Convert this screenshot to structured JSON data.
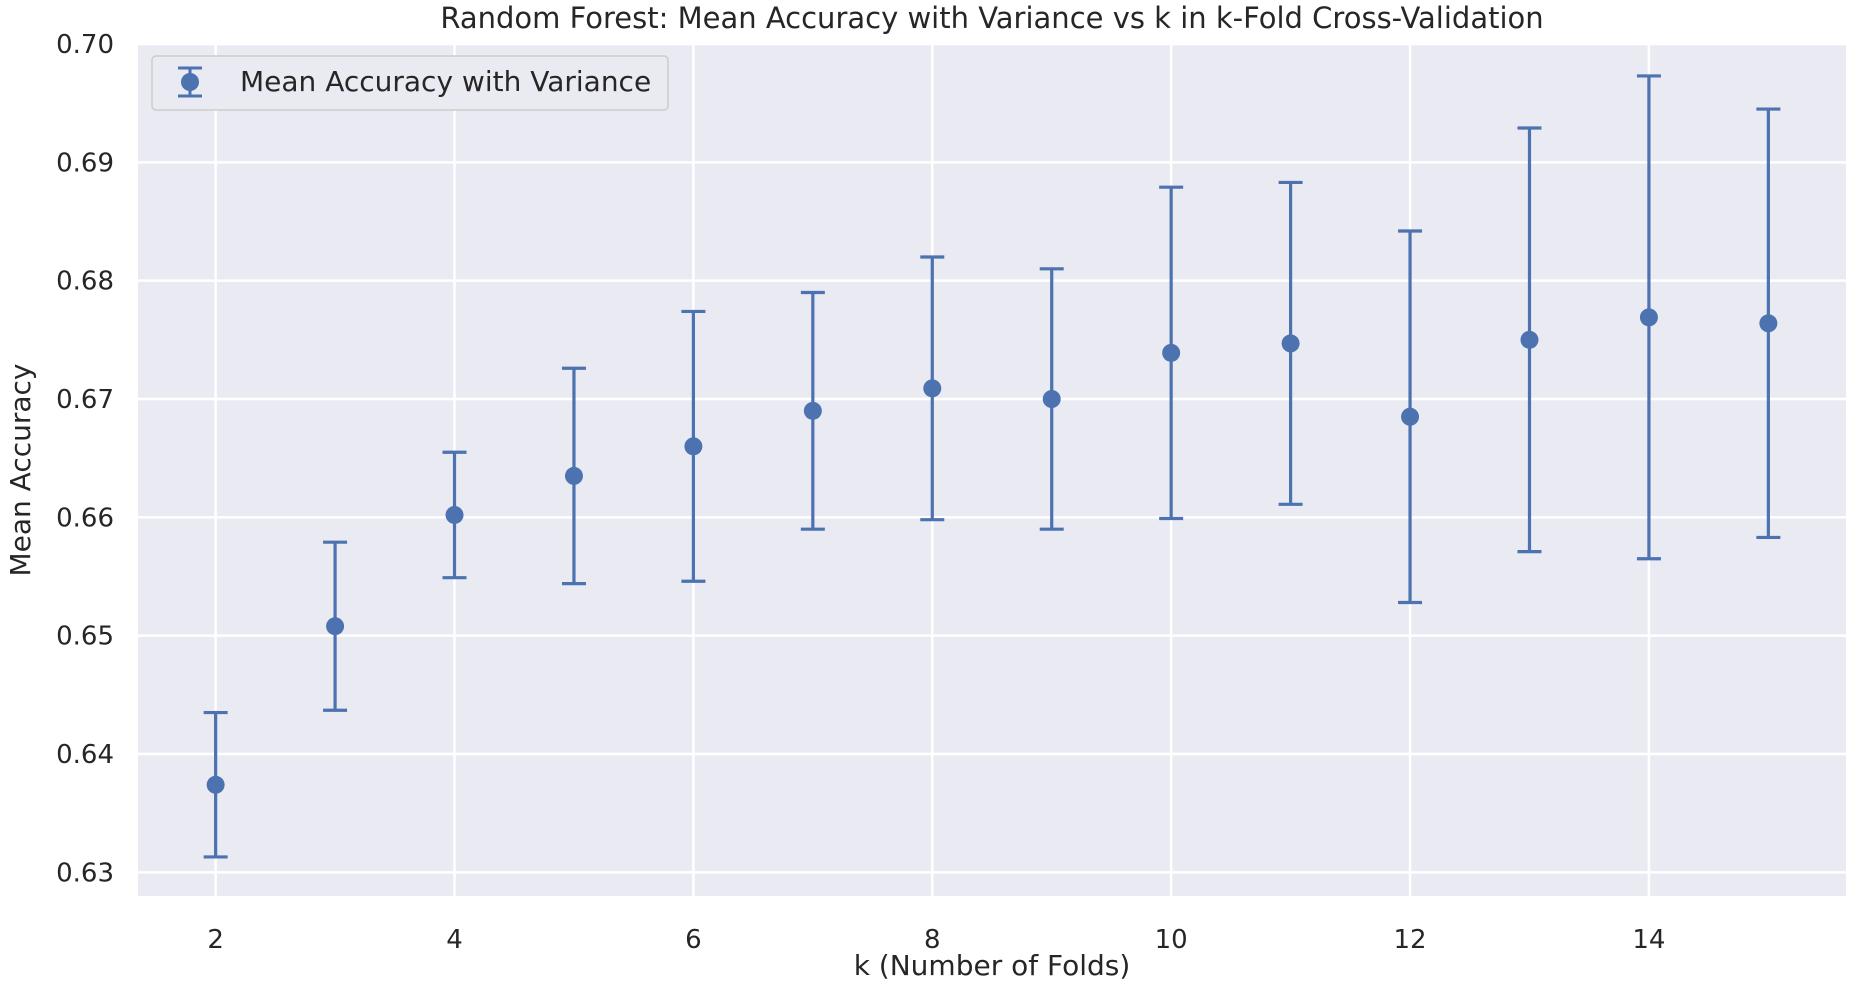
{
  "chart_data": {
    "type": "scatter",
    "title": "Random Forest: Mean Accuracy with Variance vs k in k-Fold Cross-Validation",
    "xlabel": "k (Number of Folds)",
    "ylabel": "Mean Accuracy",
    "xlim": [
      1.35,
      15.65
    ],
    "ylim": [
      0.628,
      0.7
    ],
    "xticks": [
      2,
      4,
      6,
      8,
      10,
      12,
      14
    ],
    "xtick_labels": [
      "2",
      "4",
      "6",
      "8",
      "10",
      "12",
      "14"
    ],
    "yticks": [
      0.63,
      0.64,
      0.65,
      0.66,
      0.67,
      0.68,
      0.69,
      0.7
    ],
    "ytick_labels": [
      "0.63",
      "0.64",
      "0.65",
      "0.66",
      "0.67",
      "0.68",
      "0.69",
      "0.70"
    ],
    "grid": true,
    "legend_position": "top-left",
    "series": [
      {
        "name": "Mean Accuracy with Variance",
        "color": "#4c72b0",
        "x": [
          2,
          3,
          4,
          5,
          6,
          7,
          8,
          9,
          10,
          11,
          12,
          13,
          14,
          15
        ],
        "y": [
          0.6374,
          0.6508,
          0.6602,
          0.6635,
          0.666,
          0.669,
          0.6709,
          0.67,
          0.6739,
          0.6747,
          0.6685,
          0.675,
          0.6769,
          0.6764
        ],
        "err": [
          0.0061,
          0.0071,
          0.0053,
          0.0091,
          0.0114,
          0.01,
          0.0111,
          0.011,
          0.014,
          0.0136,
          0.0157,
          0.0179,
          0.0204,
          0.0181
        ]
      }
    ]
  }
}
